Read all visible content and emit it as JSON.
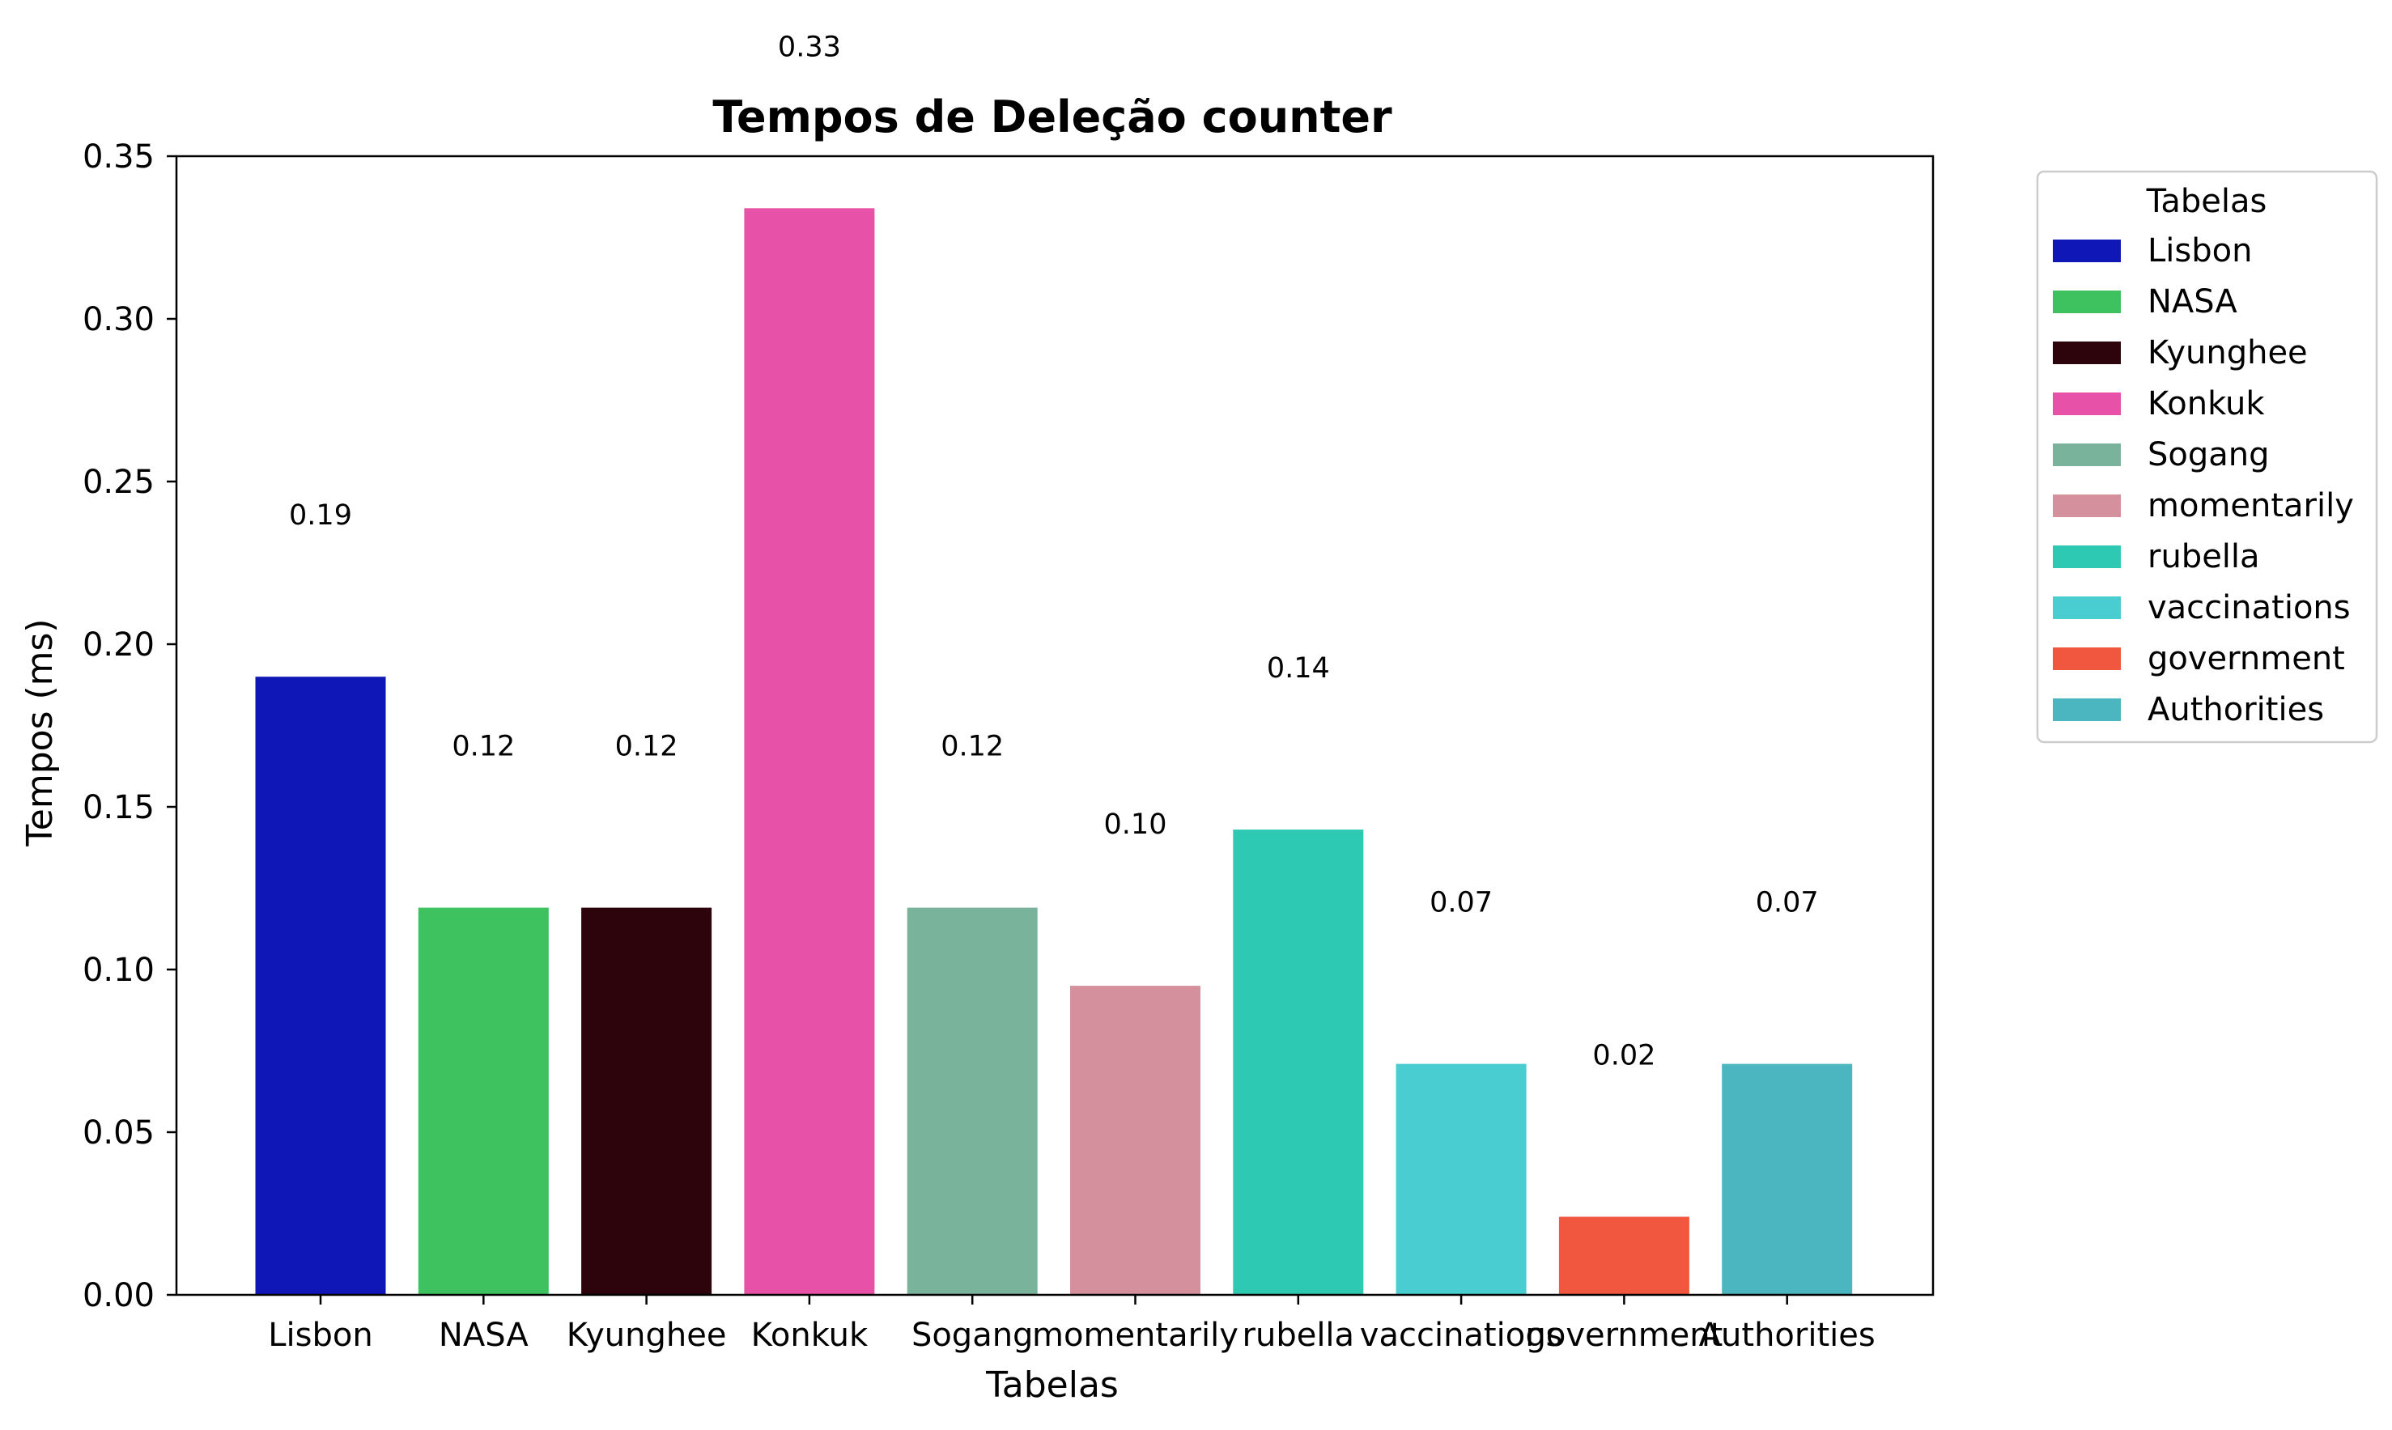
{
  "chart_data": {
    "type": "bar",
    "title": "Tempos de Deleção counter",
    "xlabel": "Tabelas",
    "ylabel": "Tempos (ms)",
    "ylim": [
      0,
      0.35
    ],
    "yticks": [
      "0.00",
      "0.05",
      "0.10",
      "0.15",
      "0.20",
      "0.25",
      "0.30",
      "0.35"
    ],
    "grid": false,
    "legend": {
      "title": "Tabelas",
      "placement": "outside-right-top"
    },
    "categories": [
      "Lisbon",
      "NASA",
      "Kyunghee",
      "Konkuk",
      "Sogang",
      "momentarily",
      "rubella",
      "vaccinations",
      "government",
      "Authorities"
    ],
    "values": [
      0.19,
      0.119,
      0.119,
      0.334,
      0.119,
      0.095,
      0.143,
      0.071,
      0.024,
      0.071
    ],
    "value_labels": [
      "0.19",
      "0.12",
      "0.12",
      "0.33",
      "0.12",
      "0.10",
      "0.14",
      "0.07",
      "0.02",
      "0.07"
    ],
    "colors": [
      "#0f17b6",
      "#3dc25f",
      "#2d040c",
      "#e752a8",
      "#7ab39c",
      "#d5909e",
      "#2ec9b2",
      "#4acdd1",
      "#f1573e",
      "#4bb6c0"
    ]
  }
}
